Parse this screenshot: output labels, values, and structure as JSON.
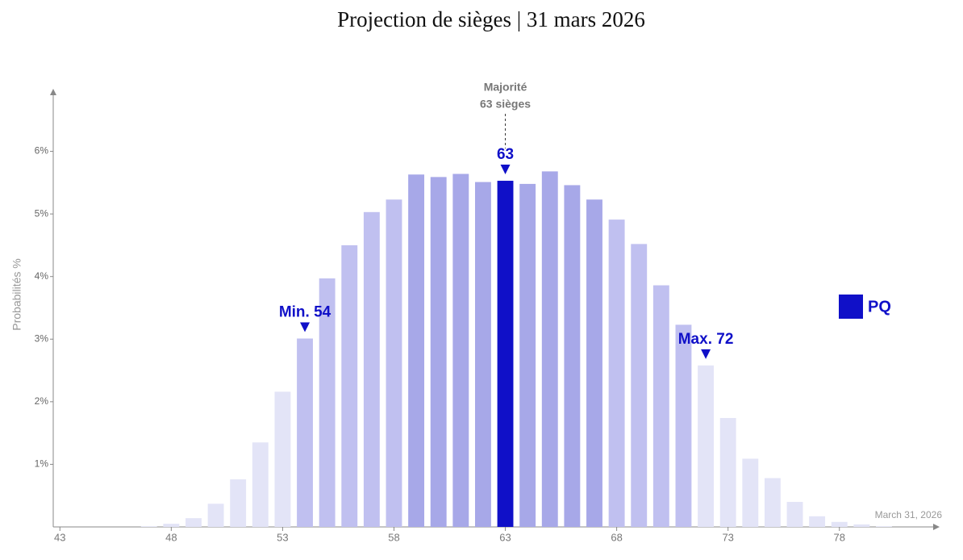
{
  "chart_data": {
    "type": "bar",
    "title": "Projection de sièges | 31 mars 2026",
    "y_label": "Probabilités %",
    "footer": "March 31, 2026",
    "categories": [
      43,
      44,
      45,
      46,
      47,
      48,
      49,
      50,
      51,
      52,
      53,
      54,
      55,
      56,
      57,
      58,
      59,
      60,
      61,
      62,
      63,
      64,
      65,
      66,
      67,
      68,
      69,
      70,
      71,
      72,
      73,
      74,
      75,
      76,
      77,
      78,
      79,
      80
    ],
    "series": [
      {
        "name": "PQ",
        "color": "#1010c8",
        "values": [
          0,
          0,
          0,
          0,
          0.01,
          0.05,
          0.14,
          0.37,
          0.76,
          1.35,
          2.16,
          3.01,
          3.97,
          4.5,
          5.03,
          5.23,
          5.63,
          5.59,
          5.64,
          5.51,
          5.53,
          5.48,
          5.68,
          5.46,
          5.23,
          4.91,
          4.52,
          3.86,
          3.23,
          2.58,
          1.74,
          1.09,
          0.78,
          0.4,
          0.17,
          0.08,
          0.04,
          0.01
        ],
        "colors": [
          "#e3e4f7",
          "#e3e4f7",
          "#e3e4f7",
          "#e3e4f7",
          "#e3e4f7",
          "#e3e4f7",
          "#e3e4f7",
          "#e3e4f7",
          "#e3e4f7",
          "#e3e4f7",
          "#e3e4f7",
          "#c0c0f0",
          "#c0c0f0",
          "#c0c0f0",
          "#c0c0f0",
          "#c0c0f0",
          "#a7a8e8",
          "#a7a8e8",
          "#a7a8e8",
          "#a7a8e8",
          "#1010c8",
          "#a7a8e8",
          "#a7a8e8",
          "#a7a8e8",
          "#a7a8e8",
          "#c0c0f0",
          "#c0c0f0",
          "#c0c0f0",
          "#c0c0f0",
          "#e3e4f7",
          "#e3e4f7",
          "#e3e4f7",
          "#e3e4f7",
          "#e3e4f7",
          "#e3e4f7",
          "#e3e4f7",
          "#e3e4f7",
          "#e3e4f7"
        ]
      }
    ],
    "xlim": [
      42.7,
      82.5
    ],
    "xticks": [
      43,
      48,
      53,
      58,
      63,
      68,
      73,
      78
    ],
    "ylim": [
      0,
      7
    ],
    "yticks": [
      {
        "value": 1,
        "label": "1%"
      },
      {
        "value": 2,
        "label": "2%"
      },
      {
        "value": 3,
        "label": "3%"
      },
      {
        "value": 4,
        "label": "4%"
      },
      {
        "value": 5,
        "label": "5%"
      },
      {
        "value": 6,
        "label": "6%"
      }
    ],
    "majority": {
      "x": 63,
      "lines": [
        "Majorité",
        "63 sièges"
      ]
    },
    "annotations": [
      {
        "text": "63",
        "x": 63
      },
      {
        "text": "Min. 54",
        "x": 54
      },
      {
        "text": "Max. 72",
        "x": 72
      }
    ]
  }
}
